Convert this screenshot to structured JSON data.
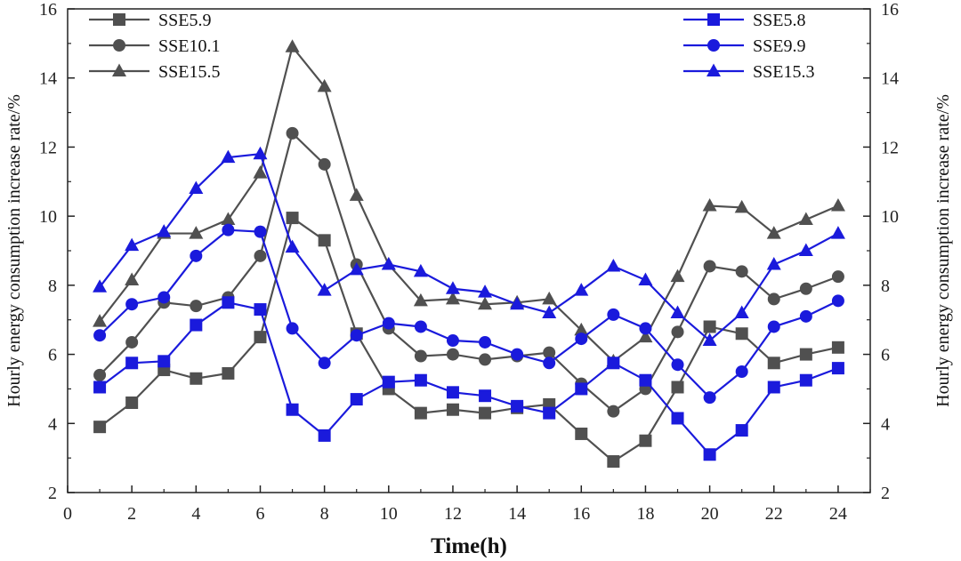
{
  "chart_data": {
    "type": "line",
    "xlabel": "Time(h)",
    "ylabel_left": "Hourly energy consumption increase rate/%",
    "ylabel_right": "Hourly energy consumption increase rate/%",
    "xlim": [
      0,
      25
    ],
    "ylim": [
      2,
      16
    ],
    "x_ticks": [
      "0",
      "2",
      "4",
      "6",
      "8",
      "10",
      "12",
      "14",
      "16",
      "18",
      "20",
      "22",
      "24"
    ],
    "y_ticks": [
      "2",
      "4",
      "6",
      "8",
      "10",
      "12",
      "14",
      "16"
    ],
    "grid": false,
    "x": [
      1,
      2,
      3,
      4,
      5,
      6,
      7,
      8,
      9,
      10,
      11,
      12,
      13,
      14,
      15,
      16,
      17,
      18,
      19,
      20,
      21,
      22,
      23,
      24
    ],
    "series": [
      {
        "name": "SSE5.9",
        "color": "#505050",
        "marker": "square",
        "values": [
          3.9,
          4.6,
          5.55,
          5.3,
          5.45,
          6.5,
          9.95,
          9.3,
          6.6,
          5.0,
          4.3,
          4.4,
          4.3,
          4.45,
          4.55,
          3.7,
          2.9,
          3.5,
          5.05,
          6.8,
          6.6,
          5.75,
          6.0,
          6.2
        ]
      },
      {
        "name": "SSE10.1",
        "color": "#505050",
        "marker": "circle",
        "values": [
          5.4,
          6.35,
          7.5,
          7.4,
          7.65,
          8.85,
          12.4,
          11.5,
          8.6,
          6.75,
          5.95,
          6.0,
          5.85,
          5.95,
          6.05,
          5.15,
          4.35,
          5.0,
          6.65,
          8.55,
          8.4,
          7.6,
          7.9,
          8.25
        ]
      },
      {
        "name": "SSE15.5",
        "color": "#505050",
        "marker": "triangle",
        "values": [
          6.95,
          8.15,
          9.5,
          9.5,
          9.9,
          11.25,
          14.9,
          13.75,
          10.6,
          8.6,
          7.55,
          7.6,
          7.45,
          7.5,
          7.6,
          6.7,
          5.8,
          6.5,
          8.25,
          10.3,
          10.25,
          9.5,
          9.9,
          10.3
        ]
      },
      {
        "name": "SSE5.8",
        "color": "#1a1adc",
        "marker": "square",
        "values": [
          5.05,
          5.75,
          5.8,
          6.85,
          7.5,
          7.3,
          4.4,
          3.65,
          4.7,
          5.2,
          5.25,
          4.9,
          4.8,
          4.5,
          4.3,
          5.0,
          5.75,
          5.25,
          4.15,
          3.1,
          3.8,
          5.05,
          5.25,
          5.6
        ]
      },
      {
        "name": "SSE9.9",
        "color": "#1a1adc",
        "marker": "circle",
        "values": [
          6.55,
          7.45,
          7.65,
          8.85,
          9.6,
          9.55,
          6.75,
          5.75,
          6.55,
          6.9,
          6.8,
          6.4,
          6.35,
          6.0,
          5.75,
          6.45,
          7.15,
          6.75,
          5.7,
          4.75,
          5.5,
          6.8,
          7.1,
          7.55
        ]
      },
      {
        "name": "SSE15.3",
        "color": "#1a1adc",
        "marker": "triangle",
        "values": [
          7.95,
          9.15,
          9.55,
          10.8,
          11.7,
          11.8,
          9.1,
          7.85,
          8.45,
          8.6,
          8.4,
          7.9,
          7.8,
          7.45,
          7.2,
          7.85,
          8.55,
          8.15,
          7.2,
          6.4,
          7.2,
          8.6,
          9.0,
          9.5
        ]
      }
    ],
    "legend": [
      {
        "placement": "top-left",
        "entries": [
          "SSE5.9",
          "SSE10.1",
          "SSE15.5"
        ]
      },
      {
        "placement": "top-right",
        "entries": [
          "SSE5.8",
          "SSE9.9",
          "SSE15.3"
        ]
      }
    ]
  }
}
